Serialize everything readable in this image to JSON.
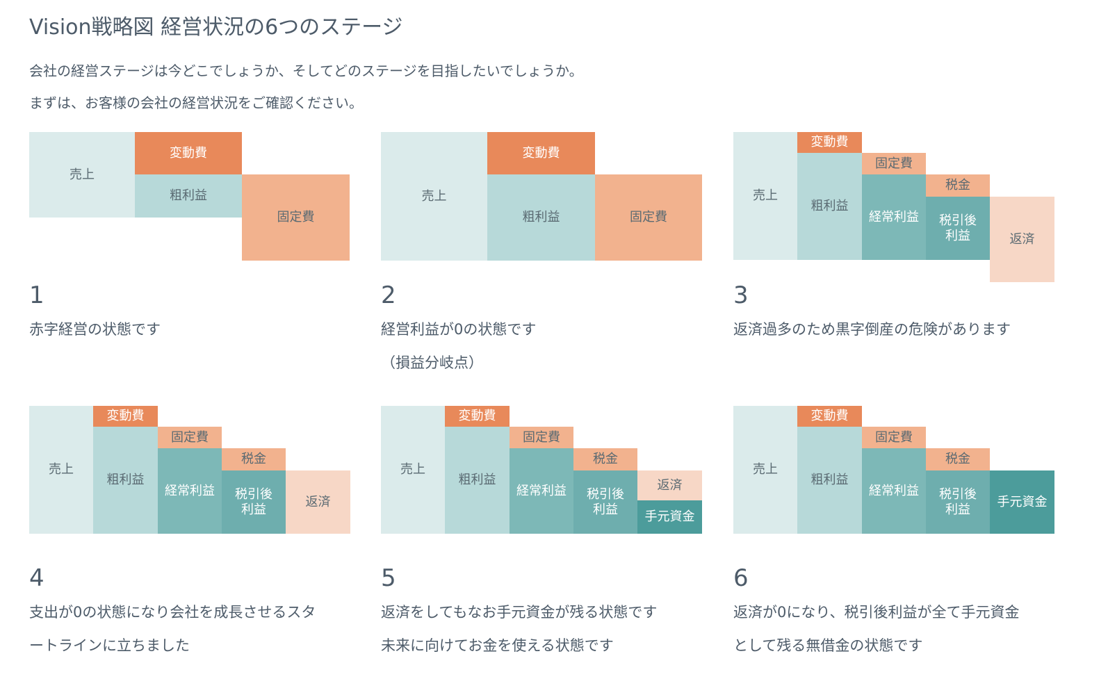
{
  "header": {
    "title": "Vision戦略図 経営状況の6つのステージ",
    "intro": [
      "会社の経営ステージは今どこでしょうか、そしてどのステージを目指したいでしょうか。",
      "まずは、お客様の会社の経営状況をご確認ください。"
    ]
  },
  "stages": [
    {
      "number": "1",
      "description": [
        "赤字経営の状態です"
      ],
      "blocks": [
        [
          "売上"
        ],
        [
          "変動費"
        ],
        [
          "粗利益"
        ],
        [
          "固定費"
        ]
      ]
    },
    {
      "number": "2",
      "description": [
        "経営利益が0の状態です",
        "（損益分岐点）"
      ],
      "blocks": [
        [
          "売上"
        ],
        [
          "変動費"
        ],
        [
          "粗利益"
        ],
        [
          "固定費"
        ]
      ]
    },
    {
      "number": "3",
      "description": [
        "返済過多のため黒字倒産の危険があります"
      ],
      "blocks": [
        [
          "売上"
        ],
        [
          "変動費"
        ],
        [
          "粗利益"
        ],
        [
          "固定費"
        ],
        [
          "経常利益"
        ],
        [
          "税金"
        ],
        [
          "税引後",
          "利益"
        ],
        [
          "返済"
        ]
      ]
    },
    {
      "number": "4",
      "description": [
        "支出が0の状態になり会社を成長させるスタ",
        "ートラインに立ちました"
      ],
      "blocks": [
        [
          "売上"
        ],
        [
          "変動費"
        ],
        [
          "粗利益"
        ],
        [
          "固定費"
        ],
        [
          "経常利益"
        ],
        [
          "税金"
        ],
        [
          "税引後",
          "利益"
        ],
        [
          "返済"
        ]
      ]
    },
    {
      "number": "5",
      "description": [
        "返済をしてもなお手元資金が残る状態です",
        "未来に向けてお金を使える状態です"
      ],
      "blocks": [
        [
          "売上"
        ],
        [
          "変動費"
        ],
        [
          "粗利益"
        ],
        [
          "固定費"
        ],
        [
          "経常利益"
        ],
        [
          "税金"
        ],
        [
          "税引後",
          "利益"
        ],
        [
          "返済"
        ],
        [
          "手元資金"
        ]
      ]
    },
    {
      "number": "6",
      "description": [
        "返済が0になり、税引後利益が全て手元資金",
        "として残る無借金の状態です"
      ],
      "blocks": [
        [
          "売上"
        ],
        [
          "変動費"
        ],
        [
          "粗利益"
        ],
        [
          "固定費"
        ],
        [
          "経常利益"
        ],
        [
          "税金"
        ],
        [
          "税引後",
          "利益"
        ],
        [
          "手元資金"
        ]
      ]
    }
  ]
}
